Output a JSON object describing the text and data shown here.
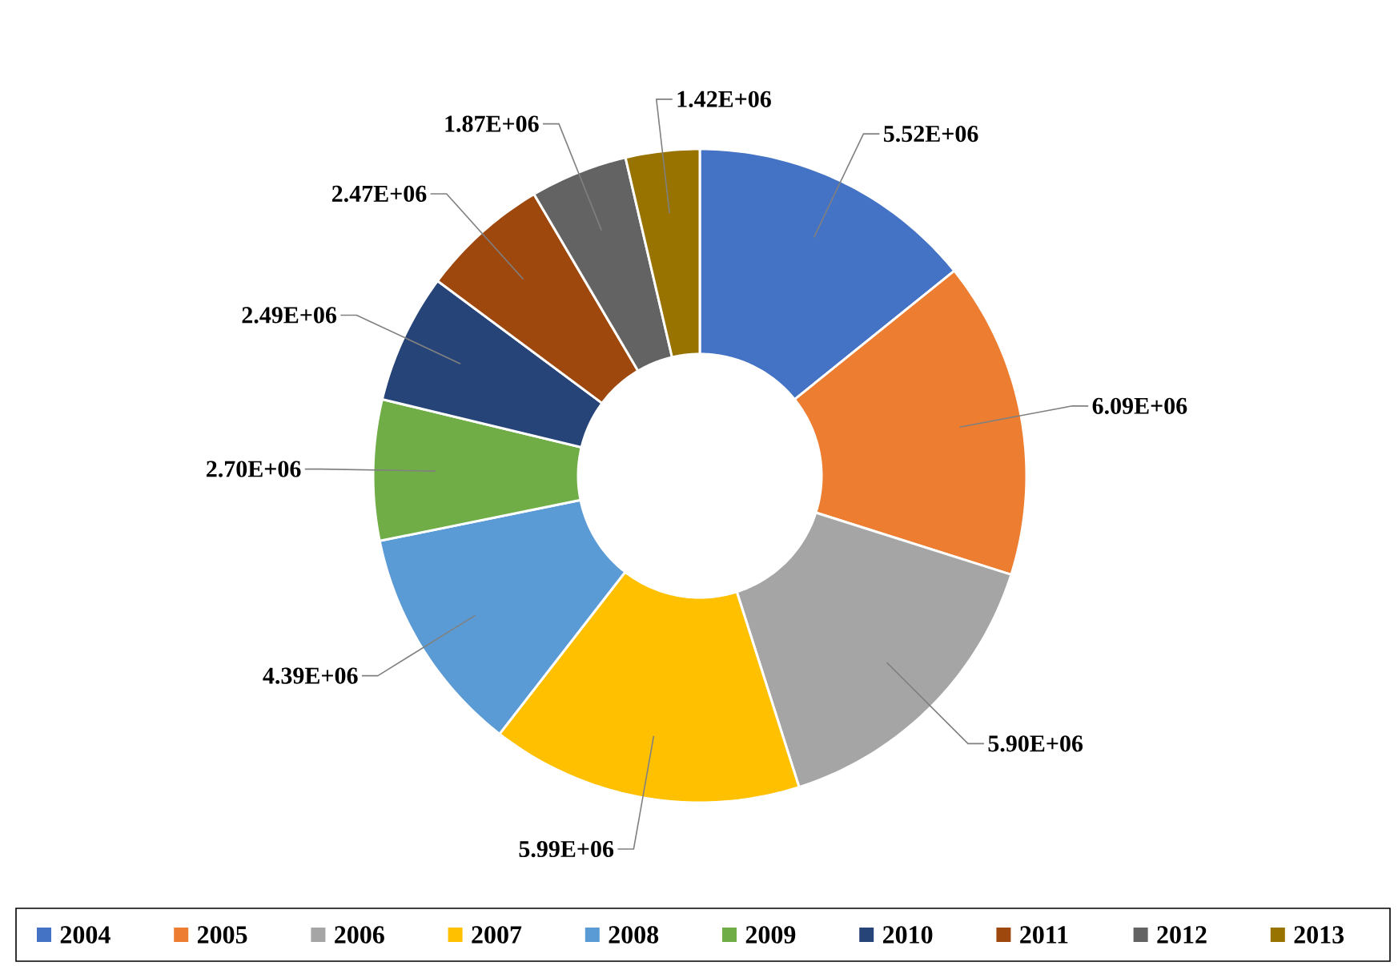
{
  "chart_data": {
    "type": "donut",
    "categories": [
      "2004",
      "2005",
      "2006",
      "2007",
      "2008",
      "2009",
      "2010",
      "2011",
      "2012",
      "2013"
    ],
    "values": [
      5520000,
      6090000,
      5900000,
      5990000,
      4390000,
      2700000,
      2490000,
      2470000,
      1870000,
      1420000
    ],
    "value_labels": [
      "5.52E+06",
      "6.09E+06",
      "5.90E+06",
      "5.99E+06",
      "4.39E+06",
      "2.70E+06",
      "2.49E+06",
      "2.47E+06",
      "1.87E+06",
      "1.42E+06"
    ],
    "colors": [
      "#4472c4",
      "#ed7d31",
      "#a5a5a5",
      "#ffc000",
      "#5b9bd5",
      "#70ad47",
      "#264478",
      "#9e480e",
      "#636363",
      "#997300"
    ],
    "legend": "bottom"
  }
}
